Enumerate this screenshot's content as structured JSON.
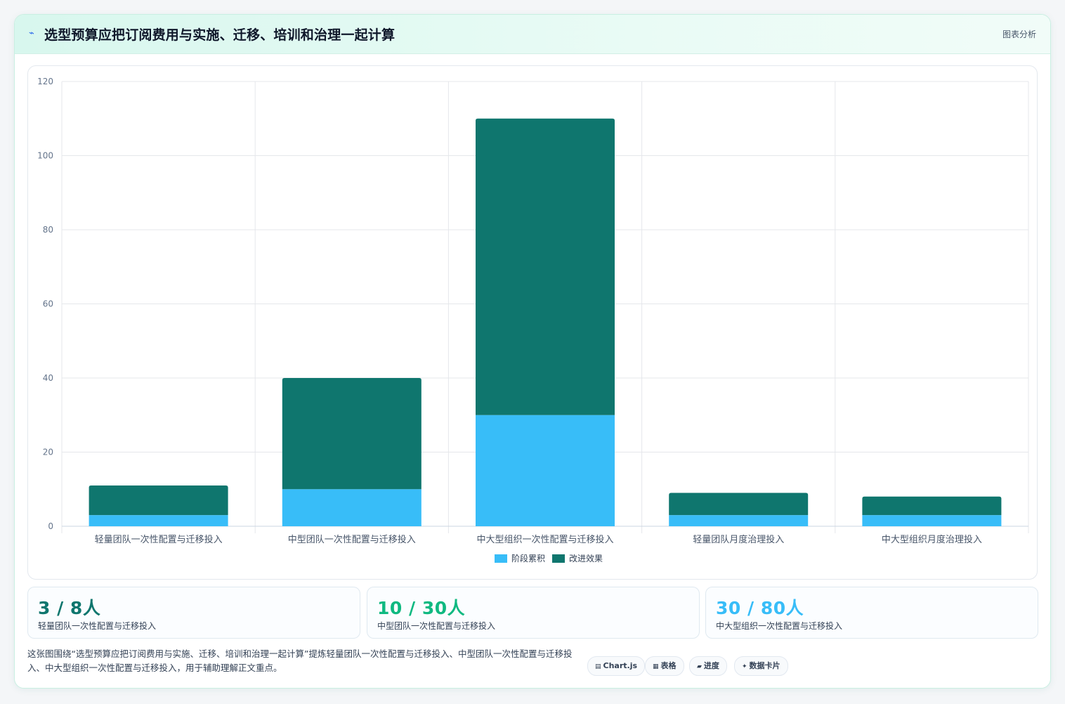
{
  "header": {
    "icon": "sparkline-icon",
    "title": "选型预算应把订阅费用与实施、迁移、培训和治理一起计算",
    "action_label": "图表分析"
  },
  "chart_data": {
    "type": "bar",
    "stacked": true,
    "categories": [
      "轻量团队一次性配置与迁移投入",
      "中型团队一次性配置与迁移投入",
      "中大型组织一次性配置与迁移投入",
      "轻量团队月度治理投入",
      "中大型组织月度治理投入"
    ],
    "series": [
      {
        "name": "阶段累积",
        "color": "#38bdf8",
        "values": [
          3,
          10,
          30,
          3,
          3
        ]
      },
      {
        "name": "改进效果",
        "color": "#0f766e",
        "values": [
          8,
          30,
          80,
          6,
          5
        ]
      }
    ],
    "ylim": [
      0,
      120
    ],
    "yticks": [
      0,
      20,
      40,
      60,
      80,
      100,
      120
    ],
    "grid": true,
    "legend_position": "bottom"
  },
  "stats": [
    {
      "value": "3 / 8人",
      "label": "轻量团队一次性配置与迁移投入",
      "color": "#0f766e"
    },
    {
      "value": "10 / 30人",
      "label": "中型团队一次性配置与迁移投入",
      "color": "#10b981"
    },
    {
      "value": "30 / 80人",
      "label": "中大型组织一次性配置与迁移投入",
      "color": "#38bdf8"
    }
  ],
  "description": "这张图围绕“选型预算应把订阅费用与实施、迁移、培训和治理一起计算”提炼轻量团队一次性配置与迁移投入、中型团队一次性配置与迁移投入、中大型组织一次性配置与迁移投入，用于辅助理解正文重点。",
  "tags": [
    {
      "icon": "chart-icon",
      "glyph": "▤",
      "label": "Chart.js"
    },
    {
      "icon": "table-icon",
      "glyph": "▦",
      "label": "表格"
    },
    {
      "icon": "progress-icon",
      "glyph": "▰",
      "label": "进度"
    },
    {
      "icon": "card-icon",
      "glyph": "✦",
      "label": "数据卡片"
    }
  ]
}
